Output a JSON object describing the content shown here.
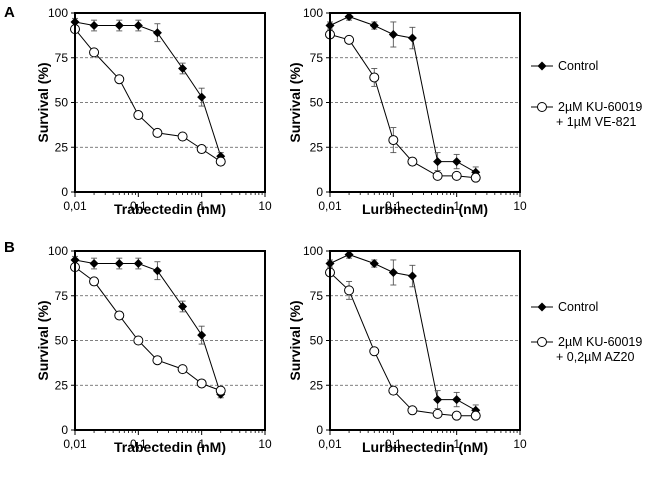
{
  "panels": {
    "a": "A",
    "b": "B"
  },
  "legends": {
    "top": {
      "control": "Control",
      "combo_line1": "2µM KU-60019",
      "combo_line2": "+ 1µM VE-821"
    },
    "bottom": {
      "control": "Control",
      "combo_line1": "2µM KU-60019",
      "combo_line2": "+ 0,2µM AZ20"
    }
  },
  "chart_data": [
    {
      "type": "line",
      "panel": "A",
      "xlabel": "Trabectedin (nM)",
      "ylabel": "Survival (%)",
      "xscale": "log",
      "xlim": [
        0.01,
        10
      ],
      "ylim": [
        0,
        100
      ],
      "xticks": [
        "0,01",
        "0,1",
        "1",
        "10"
      ],
      "yticks": [
        "0",
        "25",
        "50",
        "75",
        "100"
      ],
      "grid": "dashed horizontal at 25, 50, 75",
      "x": [
        0.01,
        0.02,
        0.05,
        0.1,
        0.2,
        0.5,
        1,
        2
      ],
      "series": [
        {
          "name": "Control",
          "marker": "filled-diamond",
          "values": [
            95,
            93,
            93,
            93,
            89,
            69,
            53,
            20
          ],
          "errors": [
            2,
            3,
            3,
            3,
            5,
            3,
            5,
            2
          ]
        },
        {
          "name": "2µM KU-60019 + 1µM VE-821",
          "marker": "open-circle",
          "values": [
            91,
            78,
            63,
            43,
            33,
            31,
            24,
            17
          ],
          "errors": [
            2,
            2,
            2,
            2,
            2,
            2,
            2,
            2
          ]
        }
      ]
    },
    {
      "type": "line",
      "panel": "A",
      "xlabel": "Lurbinectedin (nM)",
      "ylabel": "Survival (%)",
      "xscale": "log",
      "xlim": [
        0.01,
        10
      ],
      "ylim": [
        0,
        100
      ],
      "xticks": [
        "0,01",
        "0,1",
        "1",
        "10"
      ],
      "yticks": [
        "0",
        "25",
        "50",
        "75",
        "100"
      ],
      "grid": "dashed horizontal at 25, 50, 75",
      "x": [
        0.01,
        0.02,
        0.05,
        0.1,
        0.2,
        0.5,
        1,
        2
      ],
      "series": [
        {
          "name": "Control",
          "marker": "filled-diamond",
          "values": [
            93,
            98,
            93,
            88,
            86,
            17,
            17,
            11
          ],
          "errors": [
            2,
            2,
            2,
            7,
            6,
            5,
            4,
            3
          ]
        },
        {
          "name": "2µM KU-60019 + 1µM VE-821",
          "marker": "open-circle",
          "values": [
            88,
            85,
            64,
            29,
            17,
            9,
            9,
            8
          ],
          "errors": [
            2,
            2,
            5,
            7,
            2,
            1,
            1,
            1
          ]
        }
      ]
    },
    {
      "type": "line",
      "panel": "B",
      "xlabel": "Trabectedin (nM)",
      "ylabel": "Survival (%)",
      "xscale": "log",
      "xlim": [
        0.01,
        10
      ],
      "ylim": [
        0,
        100
      ],
      "xticks": [
        "0,01",
        "0,1",
        "1",
        "10"
      ],
      "yticks": [
        "0",
        "25",
        "50",
        "75",
        "100"
      ],
      "grid": "dashed horizontal at 25, 50, 75",
      "x": [
        0.01,
        0.02,
        0.05,
        0.1,
        0.2,
        0.5,
        1,
        2
      ],
      "series": [
        {
          "name": "Control",
          "marker": "filled-diamond",
          "values": [
            95,
            93,
            93,
            93,
            89,
            69,
            53,
            20
          ],
          "errors": [
            2,
            3,
            3,
            3,
            5,
            3,
            5,
            2
          ]
        },
        {
          "name": "2µM KU-60019 + 0,2µM AZ20",
          "marker": "open-circle",
          "values": [
            91,
            83,
            64,
            50,
            39,
            34,
            26,
            22
          ],
          "errors": [
            2,
            2,
            2,
            2,
            2,
            2,
            2,
            2
          ]
        }
      ]
    },
    {
      "type": "line",
      "panel": "B",
      "xlabel": "Lurbinectedin (nM)",
      "ylabel": "Survival (%)",
      "xscale": "log",
      "xlim": [
        0.01,
        10
      ],
      "ylim": [
        0,
        100
      ],
      "xticks": [
        "0,01",
        "0,1",
        "1",
        "10"
      ],
      "yticks": [
        "0",
        "25",
        "50",
        "75",
        "100"
      ],
      "grid": "dashed horizontal at 25, 50, 75",
      "x": [
        0.01,
        0.02,
        0.05,
        0.1,
        0.2,
        0.5,
        1,
        2
      ],
      "series": [
        {
          "name": "Control",
          "marker": "filled-diamond",
          "values": [
            93,
            98,
            93,
            88,
            86,
            17,
            17,
            11
          ],
          "errors": [
            2,
            2,
            2,
            7,
            6,
            5,
            4,
            3
          ]
        },
        {
          "name": "2µM KU-60019 + 0,2µM AZ20",
          "marker": "open-circle",
          "values": [
            88,
            78,
            44,
            22,
            11,
            9,
            8,
            8
          ],
          "errors": [
            2,
            5,
            2,
            2,
            1,
            1,
            1,
            1
          ]
        }
      ]
    }
  ]
}
